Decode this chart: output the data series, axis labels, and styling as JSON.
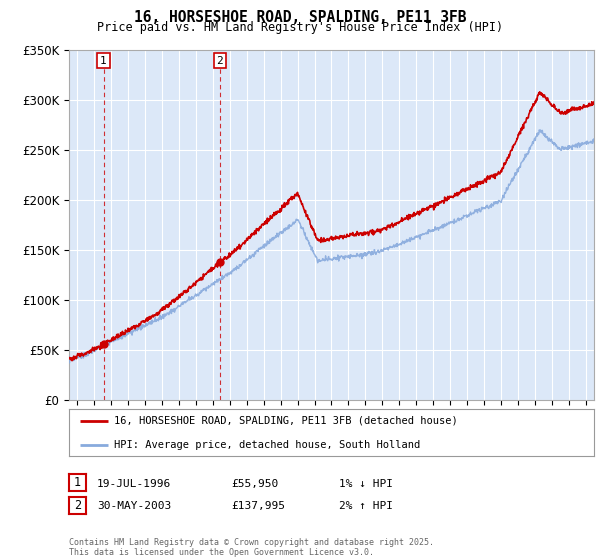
{
  "title": "16, HORSESHOE ROAD, SPALDING, PE11 3FB",
  "subtitle": "Price paid vs. HM Land Registry's House Price Index (HPI)",
  "legend_line1": "16, HORSESHOE ROAD, SPALDING, PE11 3FB (detached house)",
  "legend_line2": "HPI: Average price, detached house, South Holland",
  "sale1_date": "19-JUL-1996",
  "sale1_price": "£55,950",
  "sale1_hpi": "1% ↓ HPI",
  "sale1_year": 1996.54,
  "sale1_value": 55950,
  "sale2_date": "30-MAY-2003",
  "sale2_price": "£137,995",
  "sale2_hpi": "2% ↑ HPI",
  "sale2_year": 2003.41,
  "sale2_value": 137995,
  "footnote": "Contains HM Land Registry data © Crown copyright and database right 2025.\nThis data is licensed under the Open Government Licence v3.0.",
  "line_color": "#cc0000",
  "hpi_color": "#88aadd",
  "shaded_color": "#dce8f8",
  "background_color": "#dce8f8",
  "plot_bg": "#ffffff",
  "ylim": [
    0,
    350000
  ],
  "xlim_start": 1994.5,
  "xlim_end": 2025.5
}
